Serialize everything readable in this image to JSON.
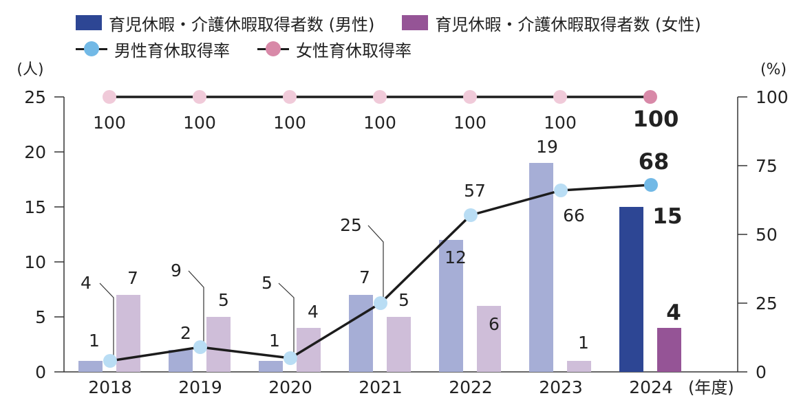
{
  "chart_data": {
    "type": "bar",
    "categories": [
      "2018",
      "2019",
      "2020",
      "2021",
      "2022",
      "2023",
      "2024"
    ],
    "xlabel": "(年度)",
    "ylabel_left": "(人)",
    "ylabel_right": "(%)",
    "ylim_left": [
      0,
      25
    ],
    "ylim_right": [
      0,
      100
    ],
    "yticks_left": [
      "0",
      "5",
      "10",
      "15",
      "20",
      "25"
    ],
    "yticks_right": [
      "0",
      "25",
      "50",
      "75",
      "100"
    ],
    "series": [
      {
        "name": "育児休暇・介護休暇取得者数 (男性)",
        "type": "bar",
        "axis": "left",
        "values": [
          1,
          2,
          1,
          7,
          12,
          19,
          15
        ],
        "labels": [
          "1",
          "2",
          "1",
          "7",
          "12",
          "19",
          "15"
        ],
        "color": "#a6aed6",
        "highlight_color": "#2d4694"
      },
      {
        "name": "育児休暇・介護休暇取得者数 (女性)",
        "type": "bar",
        "axis": "left",
        "values": [
          7,
          5,
          4,
          5,
          6,
          1,
          4
        ],
        "labels": [
          "7",
          "5",
          "4",
          "5",
          "6",
          "1",
          "4"
        ],
        "color": "#cfbed9",
        "highlight_color": "#955496"
      },
      {
        "name": "男性育休取得率",
        "type": "line",
        "axis": "right",
        "values": [
          4,
          9,
          5,
          25,
          57,
          66,
          68
        ],
        "labels": [
          "4",
          "9",
          "5",
          "25",
          "57",
          "66",
          "68"
        ],
        "color": "#b9ddf4",
        "highlight_color": "#72b9e6"
      },
      {
        "name": "女性育休取得率",
        "type": "line",
        "axis": "right",
        "values": [
          100,
          100,
          100,
          100,
          100,
          100,
          100
        ],
        "labels": [
          "100",
          "100",
          "100",
          "100",
          "100",
          "100",
          "100"
        ],
        "color": "#f0cad9",
        "highlight_color": "#d889a8"
      }
    ],
    "highlight_category": "2024",
    "grid": false,
    "legend_position": "top"
  }
}
